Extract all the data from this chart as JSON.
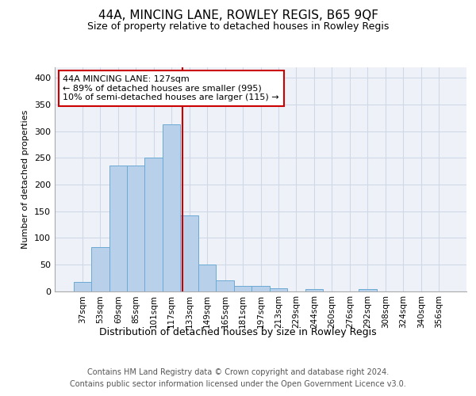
{
  "title": "44A, MINCING LANE, ROWLEY REGIS, B65 9QF",
  "subtitle": "Size of property relative to detached houses in Rowley Regis",
  "xlabel": "Distribution of detached houses by size in Rowley Regis",
  "ylabel": "Number of detached properties",
  "footer_line1": "Contains HM Land Registry data © Crown copyright and database right 2024.",
  "footer_line2": "Contains public sector information licensed under the Open Government Licence v3.0.",
  "bin_labels": [
    "37sqm",
    "53sqm",
    "69sqm",
    "85sqm",
    "101sqm",
    "117sqm",
    "133sqm",
    "149sqm",
    "165sqm",
    "181sqm",
    "197sqm",
    "213sqm",
    "229sqm",
    "244sqm",
    "260sqm",
    "276sqm",
    "292sqm",
    "308sqm",
    "324sqm",
    "340sqm",
    "356sqm"
  ],
  "bar_values": [
    17,
    83,
    235,
    235,
    250,
    313,
    142,
    50,
    20,
    9,
    10,
    5,
    0,
    3,
    0,
    0,
    3,
    0,
    0,
    0,
    0
  ],
  "bar_color": "#b8d0ea",
  "bar_edgecolor": "#6aaad4",
  "vline_color": "#cc0000",
  "annotation_line1": "44A MINCING LANE: 127sqm",
  "annotation_line2": "← 89% of detached houses are smaller (995)",
  "annotation_line3": "10% of semi-detached houses are larger (115) →",
  "annotation_box_facecolor": "white",
  "annotation_box_edgecolor": "#cc0000",
  "ylim": [
    0,
    420
  ],
  "yticks": [
    0,
    50,
    100,
    150,
    200,
    250,
    300,
    350,
    400
  ],
  "grid_color": "#d0d8e8",
  "bg_color": "#eef2f8",
  "fig_bg": "#ffffff",
  "title_fontsize": 11,
  "subtitle_fontsize": 9,
  "ylabel_fontsize": 8,
  "xlabel_fontsize": 9,
  "tick_fontsize": 7.5,
  "footer_fontsize": 7,
  "annot_fontsize": 8
}
